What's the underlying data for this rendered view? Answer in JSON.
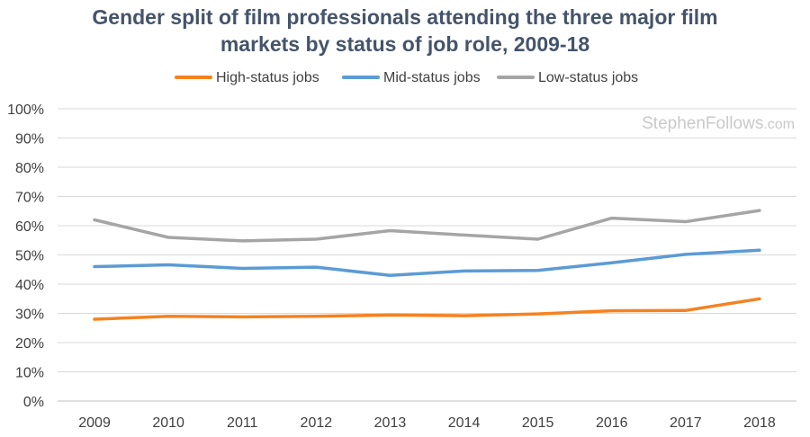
{
  "chart_data": {
    "type": "line",
    "title_lines": [
      "Gender split of film professionals attending the three major film",
      "markets by status of job role, 2009-18"
    ],
    "watermark": {
      "main": "StephenFollows",
      "suffix": ".com"
    },
    "categories": [
      "2009",
      "2010",
      "2011",
      "2012",
      "2013",
      "2014",
      "2015",
      "2016",
      "2017",
      "2018"
    ],
    "y_ticks": [
      "0%",
      "10%",
      "20%",
      "30%",
      "40%",
      "50%",
      "60%",
      "70%",
      "80%",
      "90%",
      "100%"
    ],
    "ylim": [
      0,
      100
    ],
    "legend_position": "top-center",
    "grid": true,
    "series": [
      {
        "name": "High-status jobs",
        "color": "#f58220",
        "values": [
          28,
          29,
          28.8,
          29,
          29.4,
          29.2,
          29.8,
          30.9,
          31,
          35
        ]
      },
      {
        "name": "Mid-status jobs",
        "color": "#5b9bd5",
        "values": [
          46,
          46.6,
          45.4,
          45.8,
          43,
          44.5,
          44.7,
          47.3,
          50.2,
          51.6
        ]
      },
      {
        "name": "Low-status jobs",
        "color": "#a5a5a5",
        "values": [
          62,
          56,
          54.8,
          55.4,
          58.3,
          56.8,
          55.4,
          62.6,
          61.4,
          65.2
        ]
      }
    ]
  }
}
